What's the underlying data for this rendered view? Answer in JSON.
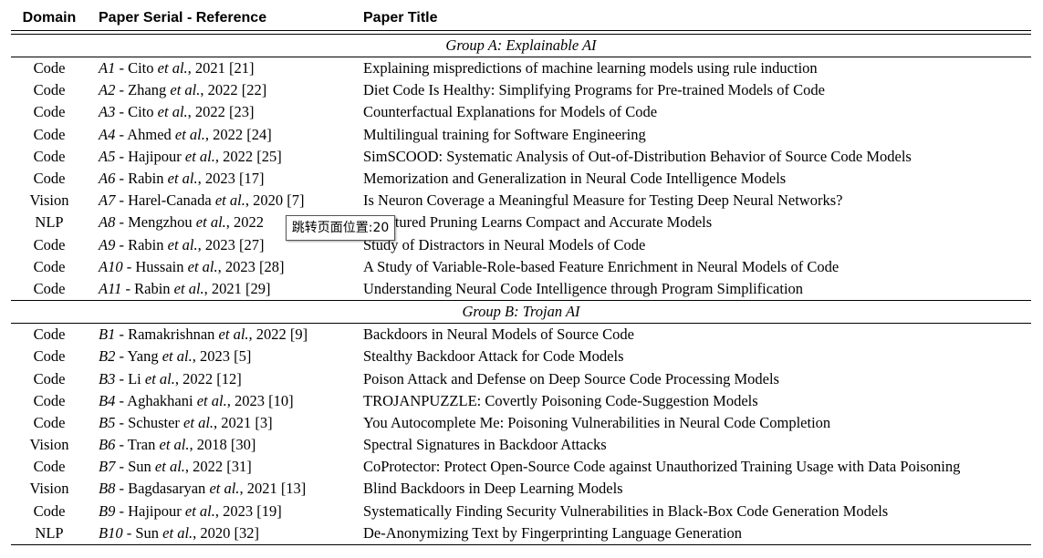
{
  "headers": {
    "domain": "Domain",
    "reference": "Paper Serial - Reference",
    "title": "Paper Title"
  },
  "groups": [
    {
      "label": "Group A: Explainable AI",
      "rows": [
        {
          "domain": "Code",
          "serial": "A1",
          "author": "Cito",
          "year_cite": "2021 [21]",
          "title": "Explaining mispredictions of machine learning models using rule induction"
        },
        {
          "domain": "Code",
          "serial": "A2",
          "author": "Zhang",
          "year_cite": "2022 [22]",
          "title": "Diet Code Is Healthy: Simplifying Programs for Pre-trained Models of Code"
        },
        {
          "domain": "Code",
          "serial": "A3",
          "author": "Cito",
          "year_cite": "2022 [23]",
          "title": "Counterfactual Explanations for Models of Code"
        },
        {
          "domain": "Code",
          "serial": "A4",
          "author": "Ahmed",
          "year_cite": "2022 [24]",
          "title": "Multilingual training for Software Engineering"
        },
        {
          "domain": "Code",
          "serial": "A5",
          "author": "Hajipour",
          "year_cite": "2022 [25]",
          "title": "SimSCOOD: Systematic Analysis of Out-of-Distribution Behavior of Source Code Models"
        },
        {
          "domain": "Code",
          "serial": "A6",
          "author": "Rabin",
          "year_cite": "2023 [17]",
          "title": "Memorization and Generalization in Neural Code Intelligence Models"
        },
        {
          "domain": "Vision",
          "serial": "A7",
          "author": "Harel-Canada",
          "year_cite": "2020 [7]",
          "title": "Is Neuron Coverage a Meaningful Measure for Testing Deep Neural Networks?"
        },
        {
          "domain": "NLP",
          "serial": "A8",
          "author": "Mengzhou",
          "year_cite": "2022",
          "title": "Structured Pruning Learns Compact and Accurate Models"
        },
        {
          "domain": "Code",
          "serial": "A9",
          "author": "Rabin",
          "year_cite": "2023 [27]",
          "title": "Study of Distractors in Neural Models of Code"
        },
        {
          "domain": "Code",
          "serial": "A10",
          "author": "Hussain",
          "year_cite": "2023 [28]",
          "title": "A Study of Variable-Role-based Feature Enrichment in Neural Models of Code"
        },
        {
          "domain": "Code",
          "serial": "A11",
          "author": "Rabin",
          "year_cite": "2021 [29]",
          "title": "Understanding Neural Code Intelligence through Program Simplification"
        }
      ]
    },
    {
      "label": "Group B: Trojan AI",
      "rows": [
        {
          "domain": "Code",
          "serial": "B1",
          "author": "Ramakrishnan",
          "year_cite": "2022 [9]",
          "title": "Backdoors in Neural Models of Source Code"
        },
        {
          "domain": "Code",
          "serial": "B2",
          "author": "Yang",
          "year_cite": "2023 [5]",
          "title": "Stealthy Backdoor Attack for Code Models"
        },
        {
          "domain": "Code",
          "serial": "B3",
          "author": "Li",
          "year_cite": "2022 [12]",
          "title": "Poison Attack and Defense on Deep Source Code Processing Models"
        },
        {
          "domain": "Code",
          "serial": "B4",
          "author": "Aghakhani",
          "year_cite": "2023 [10]",
          "title": "TROJANPUZZLE: Covertly Poisoning Code-Suggestion Models"
        },
        {
          "domain": "Code",
          "serial": "B5",
          "author": "Schuster",
          "year_cite": "2021 [3]",
          "title": "You Autocomplete Me: Poisoning Vulnerabilities in Neural Code Completion"
        },
        {
          "domain": "Vision",
          "serial": "B6",
          "author": "Tran",
          "year_cite": "2018 [30]",
          "title": "Spectral Signatures in Backdoor Attacks"
        },
        {
          "domain": "Code",
          "serial": "B7",
          "author": "Sun",
          "year_cite": "2022 [31]",
          "title": "CoProtector: Protect Open-Source Code against Unauthorized Training Usage with Data Poisoning"
        },
        {
          "domain": "Vision",
          "serial": "B8",
          "author": "Bagdasaryan",
          "year_cite": "2021 [13]",
          "title": "Blind Backdoors in Deep Learning Models"
        },
        {
          "domain": "Code",
          "serial": "B9",
          "author": "Hajipour",
          "year_cite": "2023 [19]",
          "title": "Systematically Finding Security Vulnerabilities in Black-Box Code Generation Models"
        },
        {
          "domain": "NLP",
          "serial": "B10",
          "author": "Sun",
          "year_cite": "2020 [32]",
          "title": "De-Anonymizing Text by Fingerprinting Language Generation"
        }
      ]
    }
  ],
  "etal": "et al.",
  "tooltip": "跳转页面位置:20"
}
